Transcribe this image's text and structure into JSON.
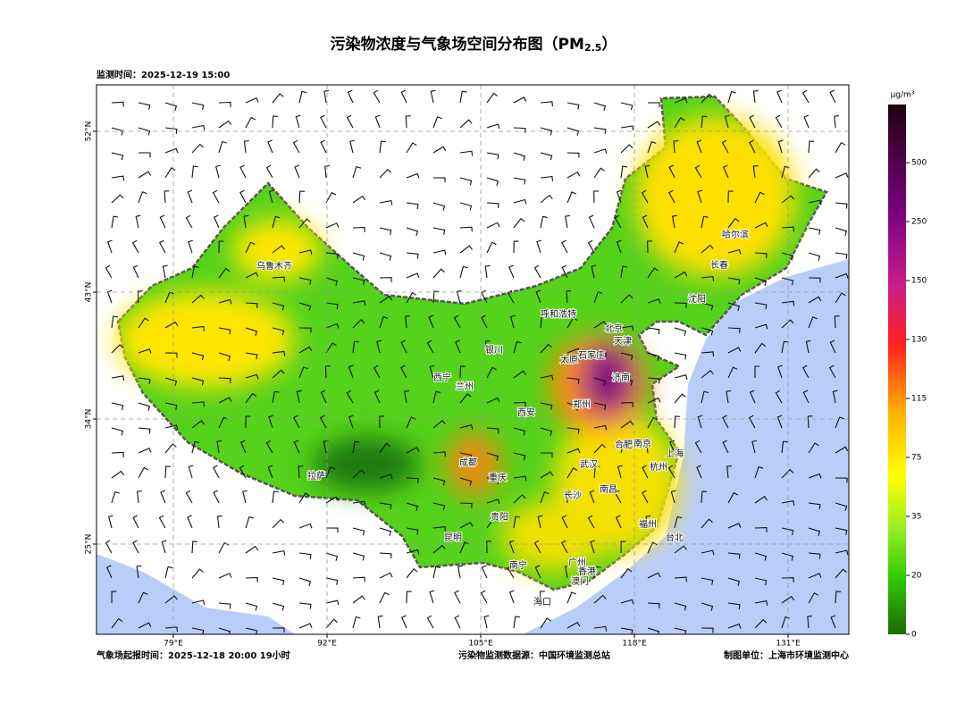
{
  "header": {
    "title": "污染物浓度与气象场空间分布图（PM",
    "title_sub": "2.5",
    "title_end": "）",
    "time": "监测时间：2025-12-19 15:00"
  },
  "map": {
    "lon_ticks": [
      "79°E",
      "92°E",
      "105°E",
      "118°E",
      "131°E"
    ],
    "lat_ticks": [
      "52°N",
      "43°N",
      "34°N",
      "25°N"
    ],
    "cities": [
      "乌鲁木齐",
      "哈尔滨",
      "长春",
      "沈阳",
      "呼和浩特",
      "北京",
      "天津",
      "银川",
      "太原",
      "石家庄",
      "西宁",
      "兰州",
      "济南",
      "西安",
      "郑州",
      "合肥",
      "南京",
      "上海",
      "成都",
      "武汉",
      "杭州",
      "重庆",
      "拉萨",
      "南昌",
      "长沙",
      "贵阳",
      "福州",
      "昆明",
      "台北",
      "南宁",
      "广州",
      "香港",
      "澳门",
      "海口"
    ]
  },
  "colorbar": {
    "unit": "μg/m³",
    "ticks": [
      0,
      20,
      35,
      75,
      115,
      130,
      150,
      250,
      500
    ]
  },
  "footer": {
    "left": "气象场起报时间：2025-12-18 20:00 19小时",
    "middle": "污染物监测数据源：中国环境监测总站",
    "right": "制图单位：上海市环境监测中心"
  }
}
